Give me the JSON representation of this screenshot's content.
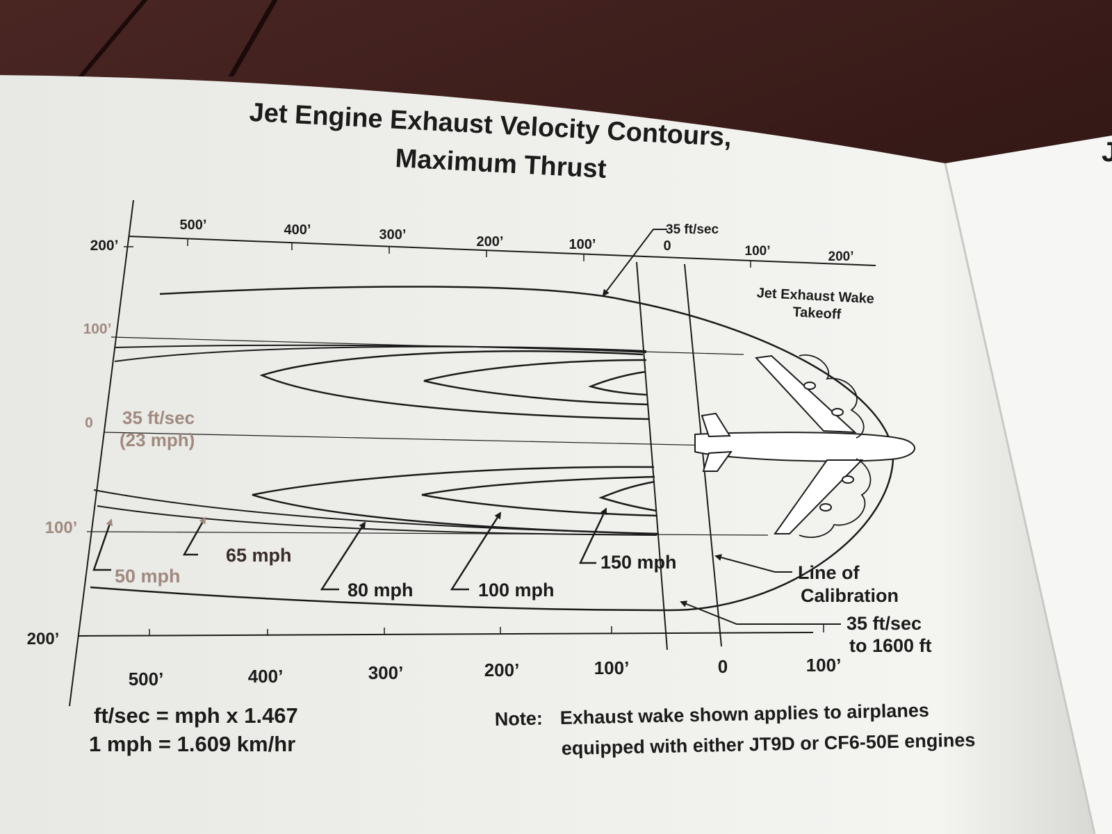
{
  "title_line1": "Jet Engine Exhaust Velocity Contours,",
  "title_line2": "Maximum Thrust",
  "top_axis": {
    "ticks": [
      "500’",
      "400’",
      "300’",
      "200’",
      "100’",
      "0",
      "100’",
      "200’"
    ]
  },
  "bottom_axis": {
    "ticks": [
      "500’",
      "400’",
      "300’",
      "200’",
      "100’",
      "0",
      "100’"
    ]
  },
  "left_axis": {
    "ticks": [
      "200’",
      "100’",
      "0",
      "100’",
      "200’"
    ]
  },
  "labels": {
    "top_contour": "35 ft/sec",
    "wake_line1": "Jet Exhaust Wake",
    "wake_line2": "Takeoff",
    "left_contour_line1": "35 ft/sec",
    "left_contour_line2": "(23 mph)",
    "mph_50": "50 mph",
    "mph_65": "65 mph",
    "mph_80": "80 mph",
    "mph_100": "100 mph",
    "mph_150": "150 mph",
    "calibration_line1": "Line of",
    "calibration_line2": "Calibration",
    "range_line1": "35 ft/sec",
    "range_line2": "to 1600 ft"
  },
  "conversion": {
    "line1": "ft/sec = mph x 1.467",
    "line2": "1 mph = 1.609 km/hr"
  },
  "note": {
    "label": "Note:",
    "line1": "Exhaust wake shown applies to airplanes",
    "line2": "equipped with either JT9D or CF6-50E engines"
  },
  "next_page_letter": "J",
  "colors": {
    "paper": "#f3f3f0",
    "ink": "#1b1b1b",
    "faded_ink": "#a08a80"
  }
}
